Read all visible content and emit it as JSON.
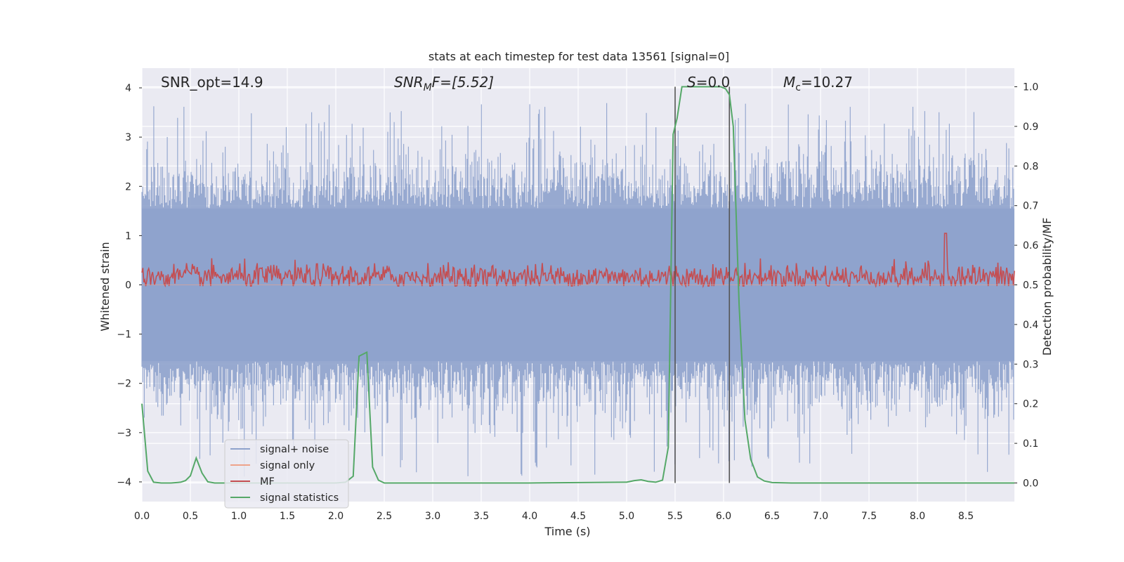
{
  "chart_data": {
    "type": "line",
    "title": "stats at each timestep for test data 13561 [signal=0]",
    "xlabel": "Time (s)",
    "ylabel": "Whitened strain",
    "y2label": "Detection probability/MF",
    "xlim": [
      0.0,
      9.0
    ],
    "ylim": [
      -4.4,
      4.4
    ],
    "y2lim": [
      -0.047,
      1.047
    ],
    "xticks": [
      "0.0",
      "0.5",
      "1.0",
      "1.5",
      "2.0",
      "2.5",
      "3.0",
      "3.5",
      "4.0",
      "4.5",
      "5.0",
      "5.5",
      "6.0",
      "6.5",
      "7.0",
      "7.5",
      "8.0",
      "8.5"
    ],
    "yticks": [
      "4",
      "3",
      "2",
      "1",
      "0",
      "−1",
      "−2",
      "−3",
      "−4"
    ],
    "y2ticks": [
      "1.0",
      "0.9",
      "0.8",
      "0.7",
      "0.6",
      "0.5",
      "0.4",
      "0.3",
      "0.2",
      "0.1",
      "0.0"
    ],
    "grid": true,
    "legend_position": "lower-left",
    "legend": [
      {
        "name": "signal+ noise",
        "color": "#8ea2cc"
      },
      {
        "name": "signal only",
        "color": "#eea38a"
      },
      {
        "name": "MF",
        "color": "#c44e52"
      },
      {
        "name": "signal statistics",
        "color": "#55a868"
      }
    ],
    "annotations": {
      "snr_opt": "SNR_opt=14.9",
      "snr_mf_sym": "SNR",
      "snr_mf_sub": "M",
      "snr_mf_rest": "F=[5.52]",
      "s_sym": "S",
      "s_rest": "=0.0",
      "mc_sym": "M",
      "mc_sub": "c",
      "mc_rest": "=10.27"
    },
    "vlines_x": [
      5.5,
      6.06
    ],
    "noise_summary": {
      "x_start": 0.0,
      "x_end": 9.0,
      "band_half_width": 1.55,
      "typical_max": 3.0,
      "peak_max": 4.0,
      "typical_min": -3.0,
      "peak_min": -4.0
    },
    "mf_summary": {
      "x_start": 0.0,
      "x_end": 9.0,
      "baseline_y2": 0.52,
      "typical_amp_y2": 0.03,
      "max_y2": 0.63,
      "spike_x": 8.29,
      "spike_y2": 0.63
    },
    "series": [
      {
        "name": "signal statistics",
        "axis": "y2",
        "x": [
          0.0,
          0.06,
          0.12,
          0.2,
          0.3,
          0.4,
          0.45,
          0.5,
          0.56,
          0.62,
          0.68,
          0.75,
          1.0,
          1.5,
          2.0,
          2.1,
          2.18,
          2.24,
          2.32,
          2.38,
          2.44,
          2.5,
          2.6,
          3.0,
          4.0,
          5.0,
          5.08,
          5.15,
          5.22,
          5.3,
          5.37,
          5.43,
          5.48,
          5.52,
          5.57,
          5.62,
          5.9,
          5.97,
          6.02,
          6.06,
          6.1,
          6.16,
          6.22,
          6.28,
          6.35,
          6.42,
          6.5,
          6.7,
          7.5,
          8.5,
          9.0
        ],
        "y": [
          0.2,
          0.03,
          0.002,
          0.0,
          0.0,
          0.002,
          0.006,
          0.018,
          0.063,
          0.025,
          0.003,
          0.0,
          0.0,
          0.0,
          0.0,
          0.002,
          0.017,
          0.32,
          0.33,
          0.04,
          0.007,
          0.0,
          0.0,
          0.0,
          0.0,
          0.002,
          0.006,
          0.008,
          0.004,
          0.002,
          0.007,
          0.09,
          0.88,
          0.92,
          1.0,
          1.0,
          1.0,
          1.0,
          0.995,
          0.98,
          0.9,
          0.45,
          0.16,
          0.06,
          0.015,
          0.005,
          0.001,
          0.0,
          0.0,
          0.0,
          0.0
        ]
      },
      {
        "name": "signal only",
        "axis": "y",
        "x": [
          0.0,
          9.0
        ],
        "y": [
          0.0,
          0.0
        ]
      }
    ]
  }
}
